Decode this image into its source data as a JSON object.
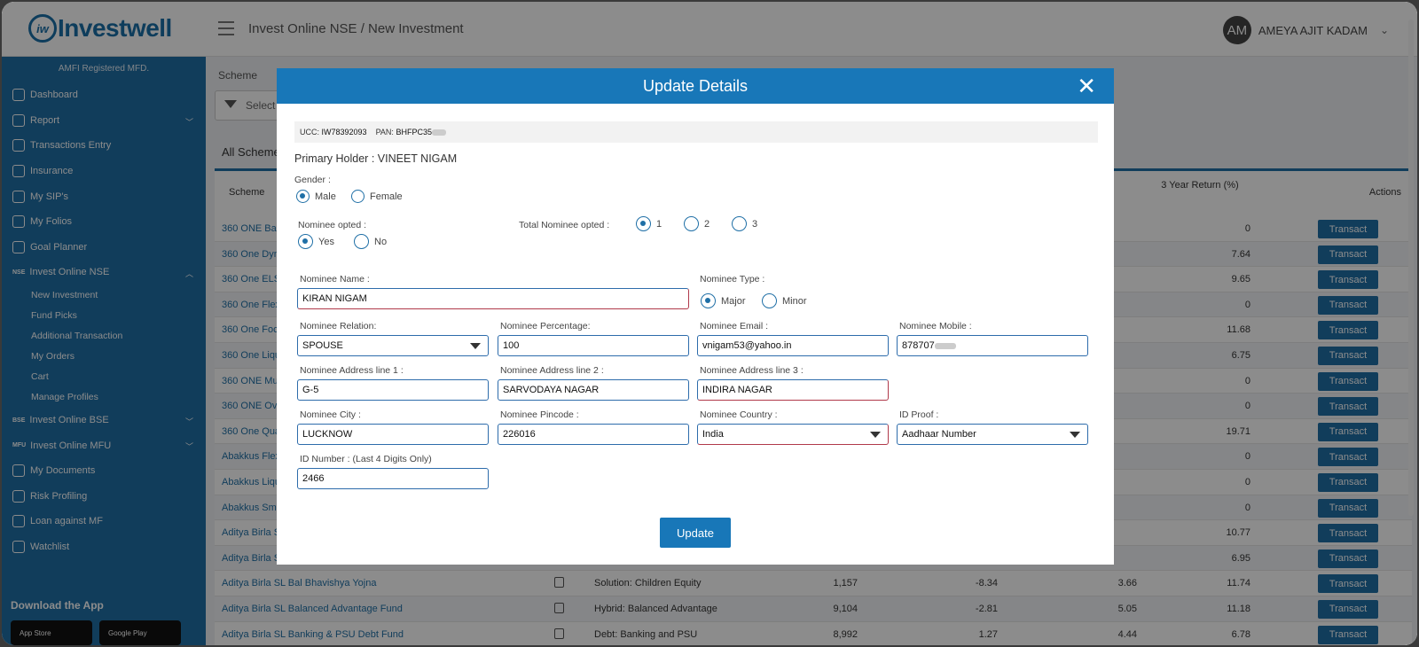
{
  "header": {
    "logo_text": "Investwell",
    "logo_mark": "iw",
    "breadcrumb": "Invest Online NSE / New Investment",
    "user_initials": "AM",
    "user_name": "AMEYA AJIT KADAM"
  },
  "sidebar": {
    "tagline": "AMFI Registered MFD.",
    "items": [
      {
        "label": "Dashboard",
        "icon": "home-icon"
      },
      {
        "label": "Report",
        "icon": "report-icon",
        "expandable": true
      },
      {
        "label": "Transactions Entry",
        "icon": "transfer-icon"
      },
      {
        "label": "Insurance",
        "icon": "insurance-icon"
      },
      {
        "label": "My SIP's",
        "icon": "sip-icon"
      },
      {
        "label": "My Folios",
        "icon": "folio-icon"
      },
      {
        "label": "Goal Planner",
        "icon": "goal-icon"
      },
      {
        "label": "Invest Online NSE",
        "icon_text": "NSE",
        "expanded": true
      }
    ],
    "nse_sub": [
      "New Investment",
      "Fund Picks",
      "Additional Transaction",
      "My Orders",
      "Cart",
      "Manage Profiles"
    ],
    "items2": [
      {
        "label": "Invest Online BSE",
        "icon_text": "BSE"
      },
      {
        "label": "Invest Online MFU",
        "icon_text": "MFU"
      },
      {
        "label": "My Documents",
        "icon": "document-icon"
      },
      {
        "label": "Risk Profiling",
        "icon": "risk-icon"
      },
      {
        "label": "Loan against MF",
        "icon": "loan-icon"
      },
      {
        "label": "Watchlist",
        "icon": "watchlist-icon"
      }
    ],
    "download_title": "Download the App",
    "app_store": "App Store",
    "google_play": "Google Play"
  },
  "main": {
    "scheme_label": "Scheme",
    "select_placeholder": "Select",
    "tab": "All Scheme",
    "columns": {
      "scheme": "Scheme",
      "return3y": "3 Year Return (%)",
      "actions": "Actions"
    },
    "rows": [
      {
        "name": "360 ONE Bal",
        "cat": "",
        "c1": "",
        "c2": "",
        "c3": "",
        "c4": "0"
      },
      {
        "name": "360 One Dyn",
        "cat": "",
        "c1": "",
        "c2": "",
        "c3": "",
        "c4": "7.64"
      },
      {
        "name": "360 One ELSS",
        "cat": "",
        "c1": "",
        "c2": "",
        "c3": "",
        "c4": "9.65"
      },
      {
        "name": "360 One Flex",
        "cat": "",
        "c1": "",
        "c2": "",
        "c3": "",
        "c4": "0"
      },
      {
        "name": "360 One Focu",
        "cat": "",
        "c1": "",
        "c2": "",
        "c3": "",
        "c4": "11.68"
      },
      {
        "name": "360 One Liqu",
        "cat": "",
        "c1": "",
        "c2": "",
        "c3": "",
        "c4": "6.75"
      },
      {
        "name": "360 ONE Mul",
        "cat": "",
        "c1": "",
        "c2": "",
        "c3": "",
        "c4": "0"
      },
      {
        "name": "360 ONE Ove",
        "cat": "",
        "c1": "",
        "c2": "",
        "c3": "",
        "c4": "0"
      },
      {
        "name": "360 One Qua",
        "cat": "",
        "c1": "",
        "c2": "",
        "c3": "",
        "c4": "19.71"
      },
      {
        "name": "Abakkus Flexi",
        "cat": "",
        "c1": "",
        "c2": "",
        "c3": "",
        "c4": "0"
      },
      {
        "name": "Abakkus Liqui",
        "cat": "",
        "c1": "",
        "c2": "",
        "c3": "",
        "c4": "0"
      },
      {
        "name": "Abakkus Smal",
        "cat": "",
        "c1": "",
        "c2": "",
        "c3": "",
        "c4": "0"
      },
      {
        "name": "Aditya Birla Sl",
        "cat": "",
        "c1": "",
        "c2": "",
        "c3": "",
        "c4": "10.77"
      },
      {
        "name": "Aditya Birla Sl",
        "cat": "",
        "c1": "",
        "c2": "",
        "c3": "",
        "c4": "6.95"
      },
      {
        "name": "Aditya Birla SL Bal Bhavishya Yojna",
        "cat": "Solution: Children Equity",
        "c1": "1,157",
        "c2": "-8.34",
        "c3": "3.66",
        "c4": "11.74"
      },
      {
        "name": "Aditya Birla SL Balanced Advantage Fund",
        "cat": "Hybrid: Balanced Advantage",
        "c1": "9,104",
        "c2": "-2.81",
        "c3": "5.05",
        "c4": "11.18"
      },
      {
        "name": "Aditya Birla SL Banking & PSU Debt Fund",
        "cat": "Debt: Banking and PSU",
        "c1": "8,992",
        "c2": "1.27",
        "c3": "4.44",
        "c4": "6.78"
      }
    ],
    "transact_label": "Transact"
  },
  "modal": {
    "title": "Update Details",
    "ucc_label": "UCC:",
    "ucc_value": "IW78392093",
    "pan_label": "PAN:",
    "pan_value": "BHFPC35",
    "primary_holder": "Primary Holder : VINEET NIGAM",
    "gender_label": "Gender :",
    "gender_options": [
      "Male",
      "Female"
    ],
    "nominee_opted_label": "Nominee opted :",
    "nominee_opted_options": [
      "Yes",
      "No"
    ],
    "total_nominee_label": "Total Nominee opted :",
    "total_nominee_options": [
      "1",
      "2",
      "3"
    ],
    "nominee_name_label": "Nominee Name :",
    "nominee_name": "KIRAN NIGAM",
    "nominee_type_label": "Nominee Type :",
    "nominee_type_options": [
      "Major",
      "Minor"
    ],
    "relation_label": "Nominee Relation:",
    "relation": "SPOUSE",
    "percentage_label": "Nominee Percentage:",
    "percentage": "100",
    "email_label": "Nominee Email :",
    "email": "vnigam53@yahoo.in",
    "mobile_label": "Nominee Mobile :",
    "mobile": "878707",
    "addr1_label": "Nominee Address line 1 :",
    "addr1": "G-5",
    "addr2_label": "Nominee Address line 2 :",
    "addr2": "SARVODAYA NAGAR",
    "addr3_label": "Nominee Address line 3 :",
    "addr3": "INDIRA NAGAR",
    "city_label": "Nominee City :",
    "city": "LUCKNOW",
    "pincode_label": "Nominee Pincode :",
    "pincode": "226016",
    "country_label": "Nominee Country :",
    "country": "India",
    "idproof_label": "ID Proof :",
    "idproof": "Aadhaar Number",
    "idnumber_label": "ID Number : (Last 4 Digits Only)",
    "idnumber": "2466",
    "update_button": "Update"
  },
  "colors": {
    "brand": "#1f6fa6",
    "modal_header": "#1877b8"
  }
}
